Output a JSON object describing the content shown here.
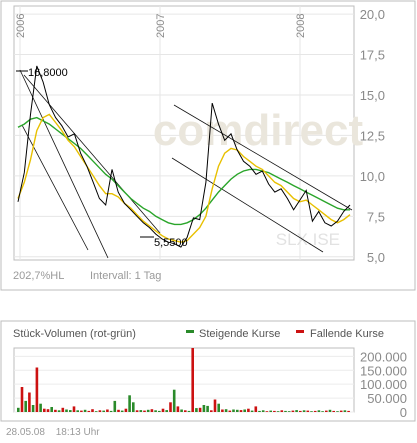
{
  "chart_data": [
    {
      "type": "line",
      "x_axis_labels": [
        "2006",
        "2007",
        "2008"
      ],
      "y_ticks": [
        "20,0",
        "17,5",
        "15,0",
        "12,5",
        "10,0",
        "7,5",
        "5,0"
      ],
      "ylim": [
        4.8,
        20.5
      ],
      "annotations": {
        "high": "16,8000",
        "low": "5,5500"
      },
      "watermark": "comdirect",
      "ticker": "SLX.ISE",
      "stats_label": "202,7%HL",
      "interval_label": "Intervall: 1 Tag",
      "series": [
        {
          "name": "price",
          "color": "#000000",
          "values": [
            8.4,
            10.2,
            13.8,
            16.8,
            15.8,
            14.4,
            13.6,
            13.1,
            12.4,
            12.6,
            11.4,
            10.6,
            9.6,
            8.6,
            8.2,
            10.4,
            9.0,
            8.3,
            7.9,
            7.5,
            7.1,
            6.8,
            6.4,
            6.1,
            5.9,
            5.8,
            5.6,
            6.2,
            7.4,
            7.3,
            9.6,
            14.5,
            13.2,
            12.2,
            12.6,
            11.6,
            10.9,
            10.6,
            10.1,
            10.3,
            9.5,
            9.0,
            9.2,
            8.6,
            7.9,
            8.5,
            9.1,
            7.2,
            7.8,
            7.1,
            6.9,
            7.2,
            7.8,
            8.2
          ]
        },
        {
          "name": "ma-short",
          "color": "#e8c000",
          "values": [
            8.6,
            9.6,
            11.0,
            12.8,
            13.6,
            13.8,
            13.3,
            12.8,
            12.2,
            11.8,
            11.2,
            10.6,
            10.0,
            9.4,
            8.9,
            8.9,
            8.7,
            8.3,
            8.0,
            7.6,
            7.2,
            6.9,
            6.6,
            6.3,
            6.1,
            6.0,
            5.9,
            6.0,
            6.4,
            6.8,
            7.5,
            9.2,
            10.6,
            11.4,
            11.7,
            11.6,
            11.2,
            10.9,
            10.6,
            10.4,
            10.0,
            9.6,
            9.4,
            9.0,
            8.6,
            8.4,
            8.5,
            8.2,
            7.9,
            7.6,
            7.3,
            7.1,
            7.3,
            7.6
          ]
        },
        {
          "name": "ma-long",
          "color": "#2aa52a",
          "values": [
            13.0,
            13.2,
            13.5,
            13.6,
            13.4,
            13.2,
            12.9,
            12.6,
            12.3,
            12.0,
            11.7,
            11.3,
            10.9,
            10.5,
            10.1,
            9.8,
            9.4,
            9.0,
            8.6,
            8.3,
            8.0,
            7.8,
            7.5,
            7.3,
            7.1,
            7.0,
            7.0,
            7.1,
            7.3,
            7.6,
            8.0,
            8.5,
            9.0,
            9.4,
            9.8,
            10.1,
            10.3,
            10.4,
            10.4,
            10.3,
            10.2,
            10.0,
            9.8,
            9.6,
            9.4,
            9.2,
            9.0,
            8.8,
            8.6,
            8.4,
            8.2,
            8.0,
            7.9,
            7.9
          ]
        }
      ]
    },
    {
      "type": "bar",
      "title": "Stück-Volumen (rot-grün)",
      "legend": [
        {
          "label": "Steigende Kurse",
          "color": "#2a8a2a"
        },
        {
          "label": "Fallende Kurse",
          "color": "#cc1111"
        }
      ],
      "y_ticks": [
        "200.000",
        "150.000",
        "100.000",
        "50.000",
        "0"
      ],
      "ylim": [
        0,
        230000
      ],
      "values": [
        15000,
        90000,
        40000,
        70000,
        25000,
        160000,
        30000,
        12000,
        10000,
        18000,
        8000,
        6000,
        15000,
        9000,
        7000,
        20000,
        6000,
        5000,
        8000,
        4000,
        10000,
        3000,
        6000,
        5000,
        9000,
        4000,
        40000,
        8000,
        5000,
        12000,
        60000,
        35000,
        6000,
        7000,
        5000,
        8000,
        10000,
        6000,
        4000,
        12000,
        7000,
        35000,
        80000,
        20000,
        9000,
        6000,
        4000,
        230000,
        14000,
        15000,
        25000,
        22000,
        6000,
        45000,
        30000,
        9000,
        10000,
        5000,
        9000,
        8000,
        7000,
        9000,
        12000,
        5000,
        20000,
        4000,
        6000,
        3000,
        5000,
        4000,
        3000,
        6000,
        4000,
        3000,
        5000,
        7000,
        4000,
        6000,
        5000,
        3000,
        4000,
        6000,
        3000,
        5000,
        8000,
        4000,
        3000,
        5000,
        6000,
        4000
      ],
      "up": [
        1,
        0,
        1,
        0,
        1,
        0,
        1,
        0,
        0,
        1,
        0,
        1,
        0,
        1,
        1,
        0,
        1,
        0,
        1,
        0,
        0,
        1,
        0,
        1,
        0,
        1,
        1,
        0,
        1,
        0,
        1,
        1,
        0,
        1,
        0,
        1,
        0,
        1,
        1,
        0,
        1,
        0,
        1,
        0,
        1,
        0,
        1,
        0,
        1,
        0,
        1,
        1,
        0,
        0,
        1,
        0,
        1,
        0,
        1,
        1,
        0,
        1,
        0,
        1,
        0,
        1,
        1,
        0,
        1,
        0,
        1,
        0,
        1,
        1,
        0,
        1,
        0,
        1,
        0,
        1,
        0,
        1,
        1,
        0,
        1,
        0,
        1,
        0,
        1,
        0
      ]
    }
  ],
  "footer": {
    "date": "28.05.08",
    "time": "18:13 Uhr"
  }
}
